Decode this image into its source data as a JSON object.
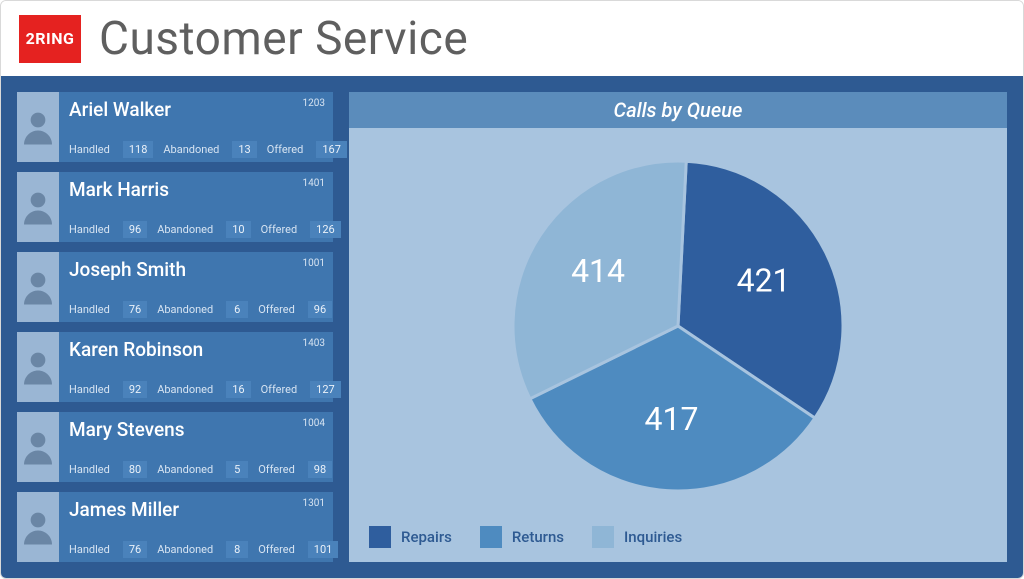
{
  "logo_text": "2RING",
  "page_title": "Customer Service",
  "colors": {
    "body_bg": "#2e5a92",
    "card_bg": "#3f76af",
    "card_val_bg": "#4a82bb",
    "chart_panel_bg": "#a8c4df",
    "chart_title_bg": "#5b8cbb"
  },
  "stat_labels": {
    "handled": "Handled",
    "abandoned": "Abandoned",
    "offered": "Offered"
  },
  "agents": [
    {
      "name": "Ariel Walker",
      "id": "1203",
      "handled": "118",
      "abandoned": "13",
      "offered": "167",
      "status_color": "#4bd14b"
    },
    {
      "name": "Mark Harris",
      "id": "1401",
      "handled": "96",
      "abandoned": "10",
      "offered": "126",
      "status_color": "#f59b1e"
    },
    {
      "name": "Joseph Smith",
      "id": "1001",
      "handled": "76",
      "abandoned": "6",
      "offered": "96",
      "status_color": "#4bd14b"
    },
    {
      "name": "Karen Robinson",
      "id": "1403",
      "handled": "92",
      "abandoned": "16",
      "offered": "127",
      "status_color": "#4bd14b"
    },
    {
      "name": "Mary Stevens",
      "id": "1004",
      "handled": "80",
      "abandoned": "5",
      "offered": "98",
      "status_color": "#4bd14b"
    },
    {
      "name": "James Miller",
      "id": "1301",
      "handled": "76",
      "abandoned": "8",
      "offered": "101",
      "status_color": "#4bd14b"
    }
  ],
  "chart": {
    "title": "Calls by Queue",
    "type": "pie",
    "radius": 165,
    "stroke": "#a8c4df",
    "stroke_width": 3,
    "label_color": "#ffffff",
    "label_fontsize": 32,
    "slices": [
      {
        "label": "Repairs",
        "value": 421,
        "color": "#2f5e9e"
      },
      {
        "label": "Returns",
        "value": 417,
        "color": "#4e8bc0"
      },
      {
        "label": "Inquiries",
        "value": 414,
        "color": "#8fb6d6"
      }
    ],
    "legend": [
      {
        "label": "Repairs",
        "color": "#2f5e9e"
      },
      {
        "label": "Returns",
        "color": "#4e8bc0"
      },
      {
        "label": "Inquiries",
        "color": "#8fb6d6"
      }
    ]
  }
}
